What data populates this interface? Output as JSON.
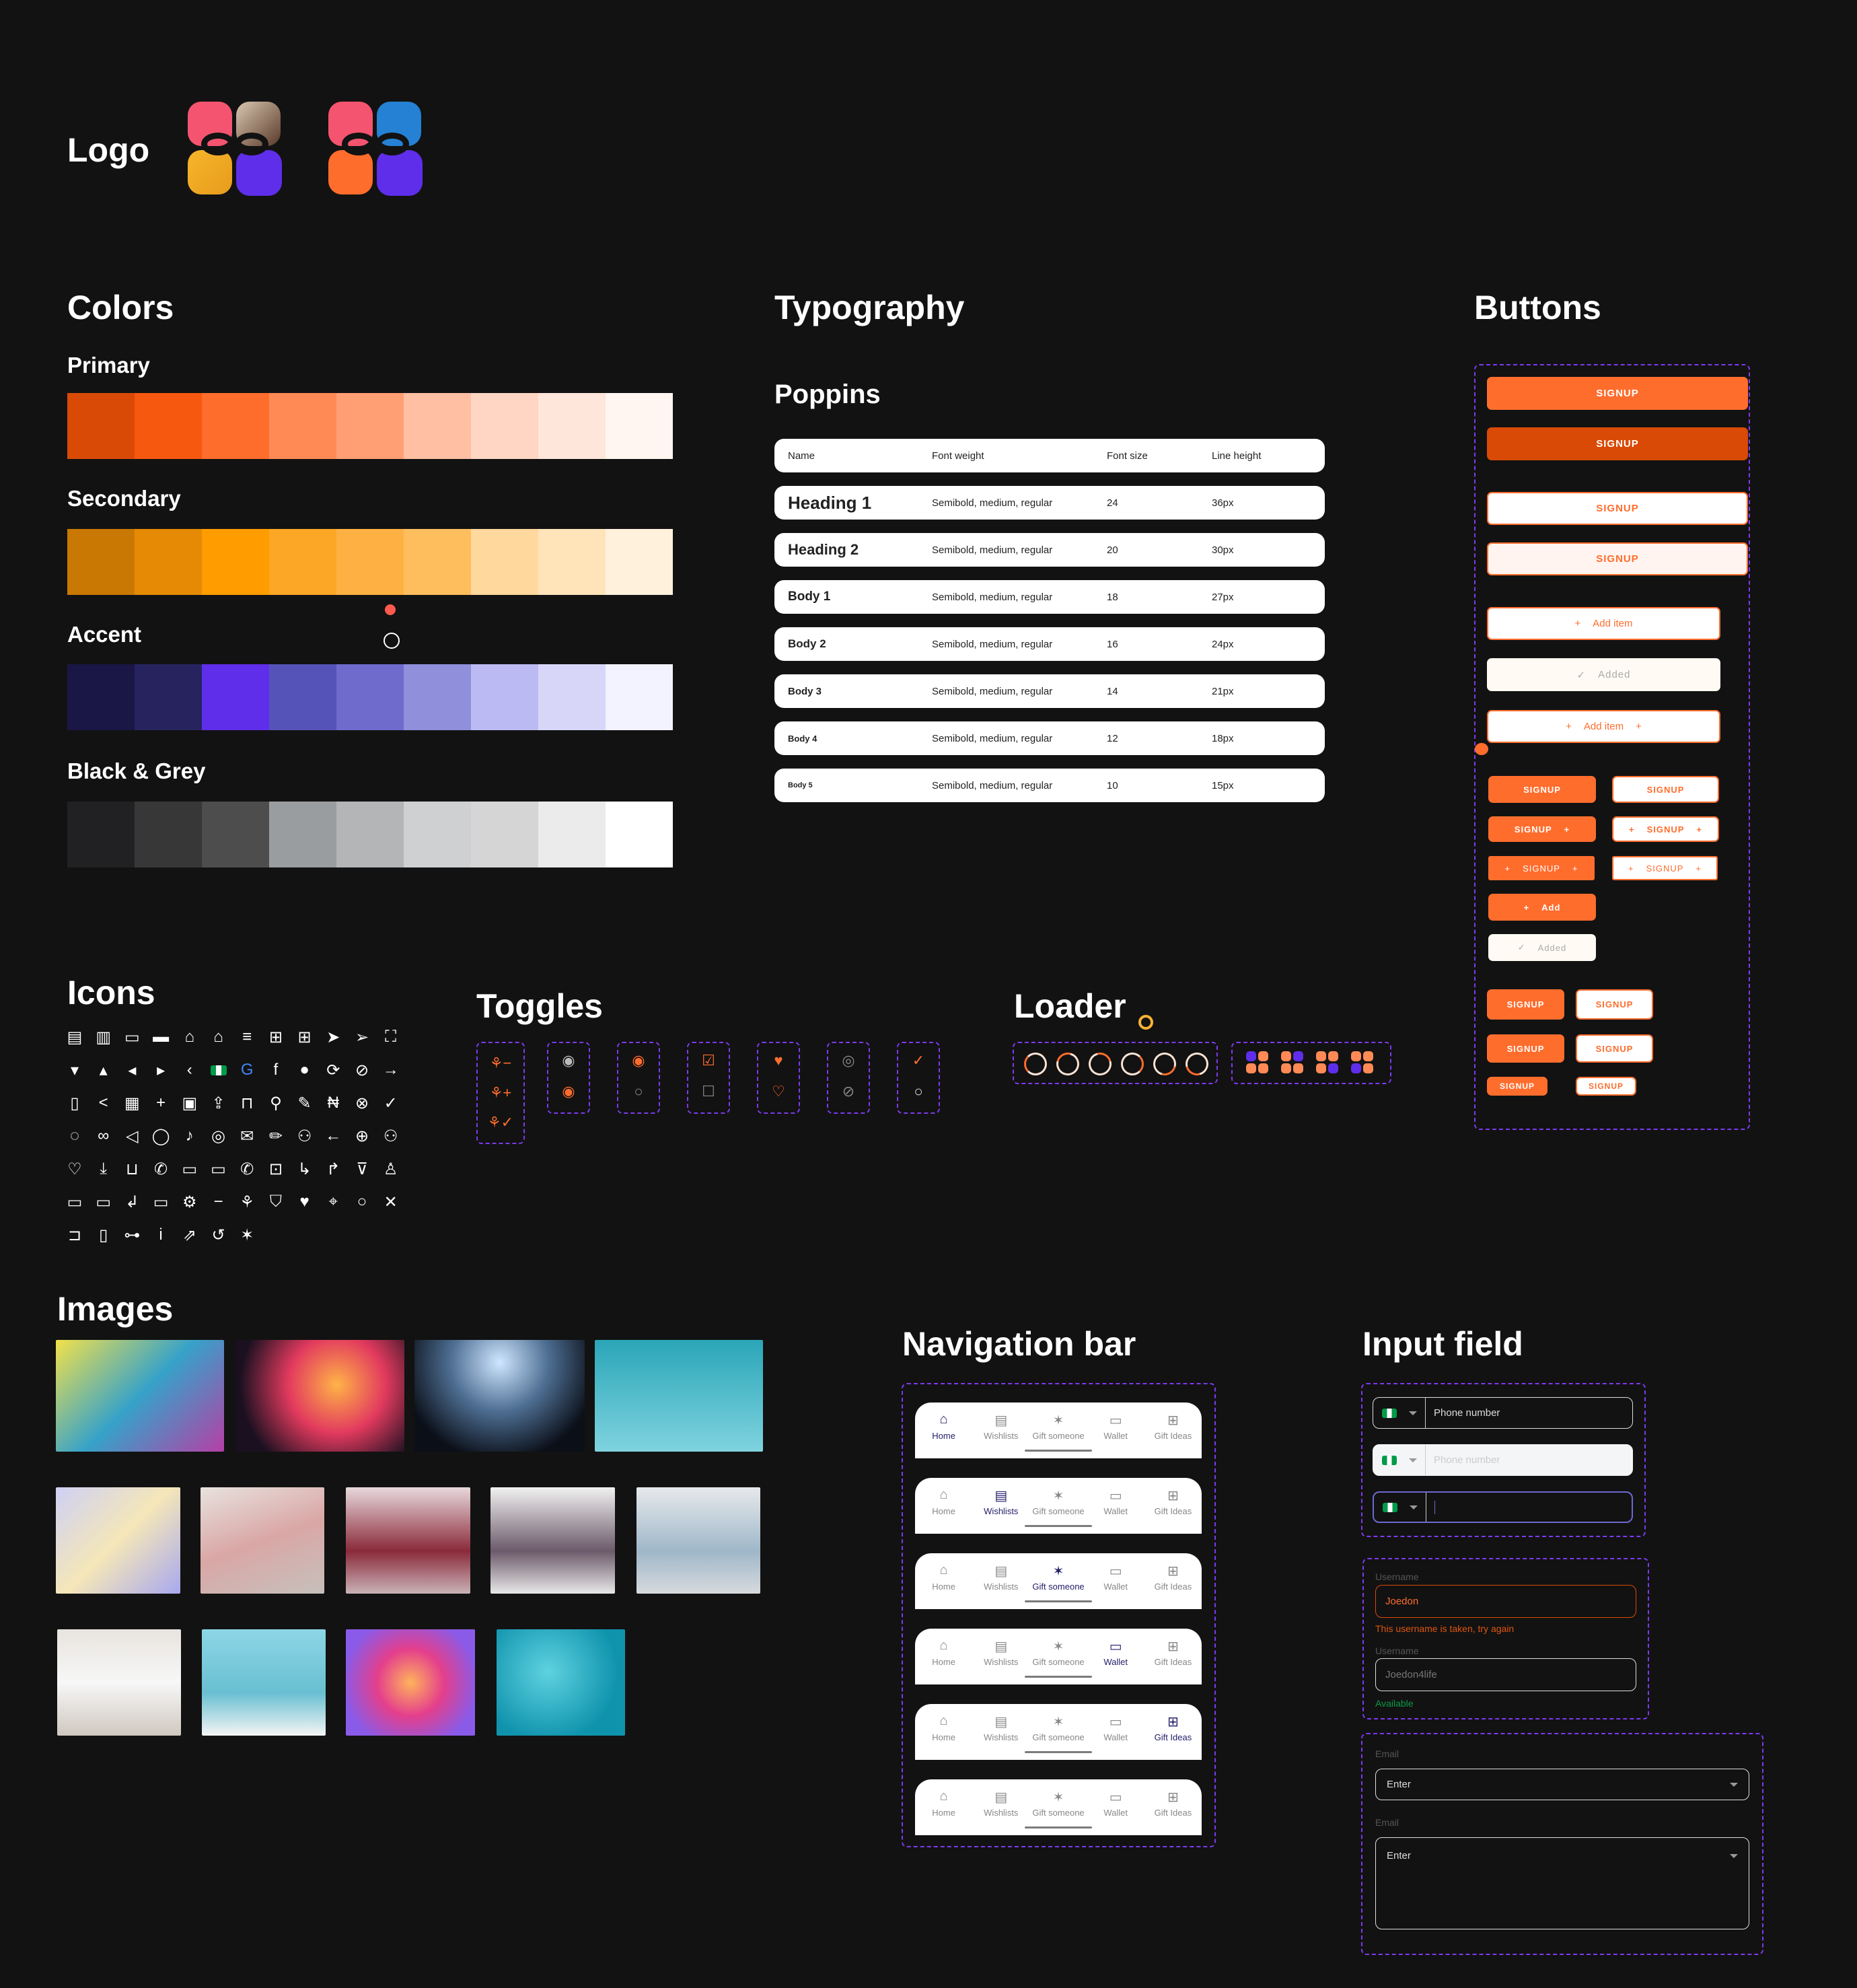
{
  "logo": {
    "title": "Logo",
    "colors": [
      "#f4546f",
      "#2581d3",
      "#ff6d2d",
      "#5f2eea"
    ]
  },
  "colors": {
    "title": "Colors",
    "palettes": [
      {
        "label": "Primary",
        "swatches": [
          "#d94a06",
          "#f7580f",
          "#ff6d2d",
          "#ff8a55",
          "#ff9f73",
          "#ffbfa3",
          "#ffd5c3",
          "#ffe6da",
          "#fff6f1"
        ]
      },
      {
        "label": "Secondary",
        "swatches": [
          "#c97804",
          "#e68a05",
          "#ff9c00",
          "#fda726",
          "#feb142",
          "#ffbe5e",
          "#ffd89e",
          "#ffe4ba",
          "#fff1dc"
        ]
      },
      {
        "label": "Accent",
        "swatches": [
          "#1a1645",
          "#26235f",
          "#5f2eea",
          "#5653b8",
          "#6f6bcd",
          "#8f8fdc",
          "#bcbaf2",
          "#d8d6f8",
          "#f3f2ff"
        ]
      },
      {
        "label": "Black & Grey",
        "swatches": [
          "#212023",
          "#383738",
          "#4d4d4d",
          "#999da0",
          "#b4b5b7",
          "#cfd0d2",
          "#d5d5d5",
          "#ebebeb",
          "#ffffff"
        ]
      }
    ]
  },
  "typography": {
    "title": "Typography",
    "font": "Poppins",
    "headers": [
      "Name",
      "Font weight",
      "Font size",
      "Line height"
    ],
    "rows": [
      [
        "Heading 1",
        "Semibold, medium, regular",
        "24",
        "36px"
      ],
      [
        "Heading 2",
        "Semibold, medium, regular",
        "20",
        "30px"
      ],
      [
        "Body 1",
        "Semibold, medium, regular",
        "18",
        "27px"
      ],
      [
        "Body 2",
        "Semibold, medium, regular",
        "16",
        "24px"
      ],
      [
        "Body 3",
        "Semibold, medium, regular",
        "14",
        "21px"
      ],
      [
        "Body 4",
        "Semibold, medium, regular",
        "12",
        "18px"
      ],
      [
        "Body 5",
        "Semibold, medium, regular",
        "10",
        "15px"
      ]
    ]
  },
  "buttons": {
    "title": "Buttons",
    "signup": "SIGNUP",
    "add_item": "Add item",
    "added": "Added",
    "add": "Add"
  },
  "icons": {
    "title": "Icons",
    "items": [
      "clipboard-filled",
      "clipboard",
      "wallet",
      "wallet-filled",
      "home-filled",
      "home",
      "playlist-add",
      "gift",
      "gift-filled",
      "send-filled",
      "send",
      "scan",
      "caret-down",
      "caret-up",
      "caret-left",
      "caret-right",
      "chevron-left",
      "nigeria-flag",
      "google",
      "facebook",
      "apple",
      "refresh",
      "eye-off",
      "arrow-right",
      "trash",
      "share",
      "calendar",
      "plus",
      "image",
      "upload",
      "shopping-bag",
      "search",
      "edit",
      "naira",
      "close-circle",
      "check",
      "messenger",
      "link",
      "telegram",
      "whatsapp",
      "twitter",
      "instagram",
      "mail",
      "pencil",
      "user-add",
      "arrow-left",
      "globe",
      "users",
      "heart",
      "download",
      "bag",
      "phone",
      "cash",
      "banknote",
      "phone-outline",
      "lock",
      "turn-down-right",
      "turn-up-right",
      "filter",
      "user",
      "cash-withdraw",
      "cash-deposit",
      "turn-left",
      "card-add",
      "gear",
      "minus",
      "tulip",
      "shield-info",
      "heart-filled",
      "location",
      "circle",
      "close",
      "ticket",
      "door-settings",
      "settings-toggle",
      "info",
      "external-link",
      "logout",
      "party-popper"
    ]
  },
  "toggles": {
    "title": "Toggles"
  },
  "loader": {
    "title": "Loader"
  },
  "images": {
    "title": "Images"
  },
  "navigation": {
    "title": "Navigation bar",
    "items": [
      "Home",
      "Wishlists",
      "Gift someone",
      "Wallet",
      "Gift Ideas"
    ],
    "active_states": [
      0,
      1,
      2,
      3,
      4,
      null
    ]
  },
  "inputs": {
    "title": "Input field",
    "phone_placeholder": "Phone number",
    "username_label": "Username",
    "username_error_value": "Joedon",
    "username_error": "This username is taken, try again",
    "username_ok_value": "Joedon4life",
    "username_ok": "Available",
    "email_label": "Email",
    "email_value": "Enter"
  }
}
